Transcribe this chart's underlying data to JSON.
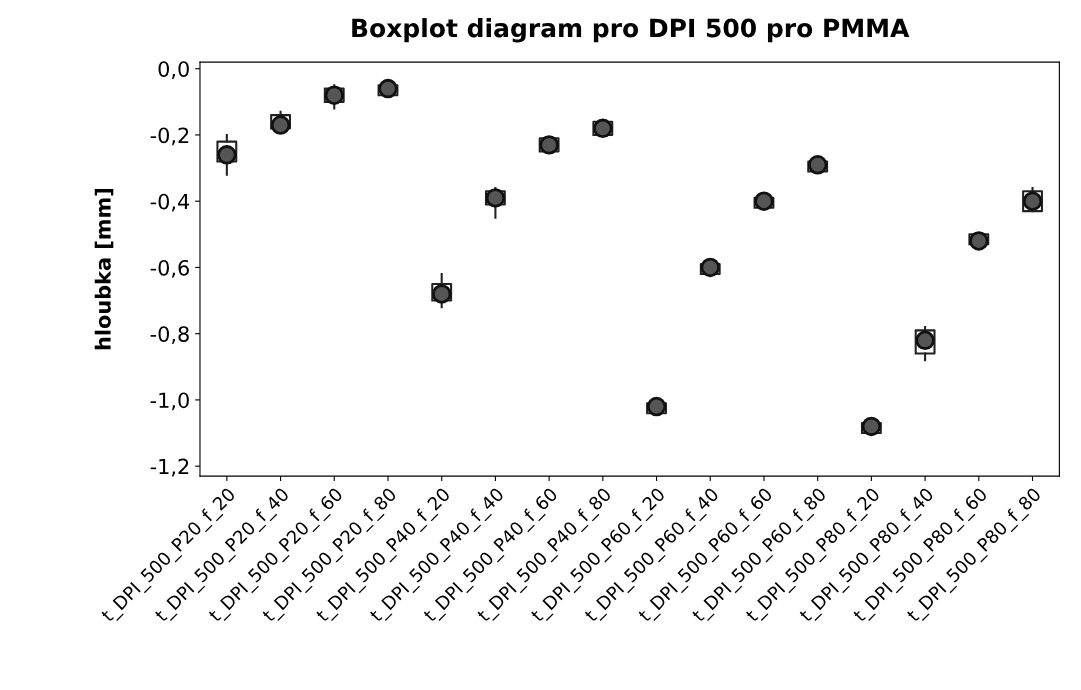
{
  "chart_data": {
    "type": "box",
    "title": "Boxplot diagram pro DPI 500 pro PMMA",
    "ylabel": "hloubka [mm]",
    "categories": [
      "t_DPI_500_P20_f_20",
      "t_DPI_500_P20_f_40",
      "t_DPI_500_P20_f_60",
      "t_DPI_500_P20_f_80",
      "t_DPI_500_P40_f_20",
      "t_DPI_500_P40_f_40",
      "t_DPI_500_P40_f_60",
      "t_DPI_500_P40_f_80",
      "t_DPI_500_P60_f_20",
      "t_DPI_500_P60_f_40",
      "t_DPI_500_P60_f_60",
      "t_DPI_500_P60_f_80",
      "t_DPI_500_P80_f_20",
      "t_DPI_500_P80_f_40",
      "t_DPI_500_P80_f_60",
      "t_DPI_500_P80_f_80"
    ],
    "boxes": [
      {
        "low": -0.32,
        "q1": -0.28,
        "median": -0.25,
        "q3": -0.22,
        "high": -0.2,
        "mean": -0.26
      },
      {
        "low": -0.19,
        "q1": -0.18,
        "median": -0.16,
        "q3": -0.14,
        "high": -0.13,
        "mean": -0.17
      },
      {
        "low": -0.12,
        "q1": -0.1,
        "median": -0.08,
        "q3": -0.06,
        "high": -0.05,
        "mean": -0.08
      },
      {
        "low": -0.08,
        "q1": -0.08,
        "median": -0.06,
        "q3": -0.05,
        "high": -0.04,
        "mean": -0.06
      },
      {
        "low": -0.72,
        "q1": -0.7,
        "median": -0.68,
        "q3": -0.65,
        "high": -0.62,
        "mean": -0.68
      },
      {
        "low": -0.45,
        "q1": -0.41,
        "median": -0.39,
        "q3": -0.37,
        "high": -0.36,
        "mean": -0.39
      },
      {
        "low": -0.25,
        "q1": -0.25,
        "median": -0.23,
        "q3": -0.21,
        "high": -0.21,
        "mean": -0.23
      },
      {
        "low": -0.2,
        "q1": -0.2,
        "median": -0.18,
        "q3": -0.16,
        "high": -0.16,
        "mean": -0.18
      },
      {
        "low": -1.04,
        "q1": -1.04,
        "median": -1.02,
        "q3": -1.01,
        "high": -1.01,
        "mean": -1.02
      },
      {
        "low": -0.62,
        "q1": -0.62,
        "median": -0.6,
        "q3": -0.59,
        "high": -0.58,
        "mean": -0.6
      },
      {
        "low": -0.42,
        "q1": -0.42,
        "median": -0.4,
        "q3": -0.39,
        "high": -0.39,
        "mean": -0.4
      },
      {
        "low": -0.31,
        "q1": -0.31,
        "median": -0.29,
        "q3": -0.28,
        "high": -0.28,
        "mean": -0.29
      },
      {
        "low": -1.1,
        "q1": -1.1,
        "median": -1.08,
        "q3": -1.07,
        "high": -1.07,
        "mean": -1.08
      },
      {
        "low": -0.88,
        "q1": -0.86,
        "median": -0.82,
        "q3": -0.79,
        "high": -0.78,
        "mean": -0.82
      },
      {
        "low": -0.53,
        "q1": -0.53,
        "median": -0.52,
        "q3": -0.5,
        "high": -0.5,
        "mean": -0.52
      },
      {
        "low": -0.43,
        "q1": -0.43,
        "median": -0.4,
        "q3": -0.37,
        "high": -0.36,
        "mean": -0.4
      }
    ],
    "ylim": [
      -1.23,
      0.02
    ],
    "yticks": [
      {
        "value": 0,
        "label": "0,0"
      },
      {
        "value": -0.2,
        "label": "-0,2"
      },
      {
        "value": -0.4,
        "label": "-0,4"
      },
      {
        "value": -0.6,
        "label": "-0,6"
      },
      {
        "value": -0.8,
        "label": "-0,8"
      },
      {
        "value": -1.0,
        "label": "-1,0"
      },
      {
        "value": -1.2,
        "label": "-1,2"
      }
    ],
    "grid": false
  }
}
